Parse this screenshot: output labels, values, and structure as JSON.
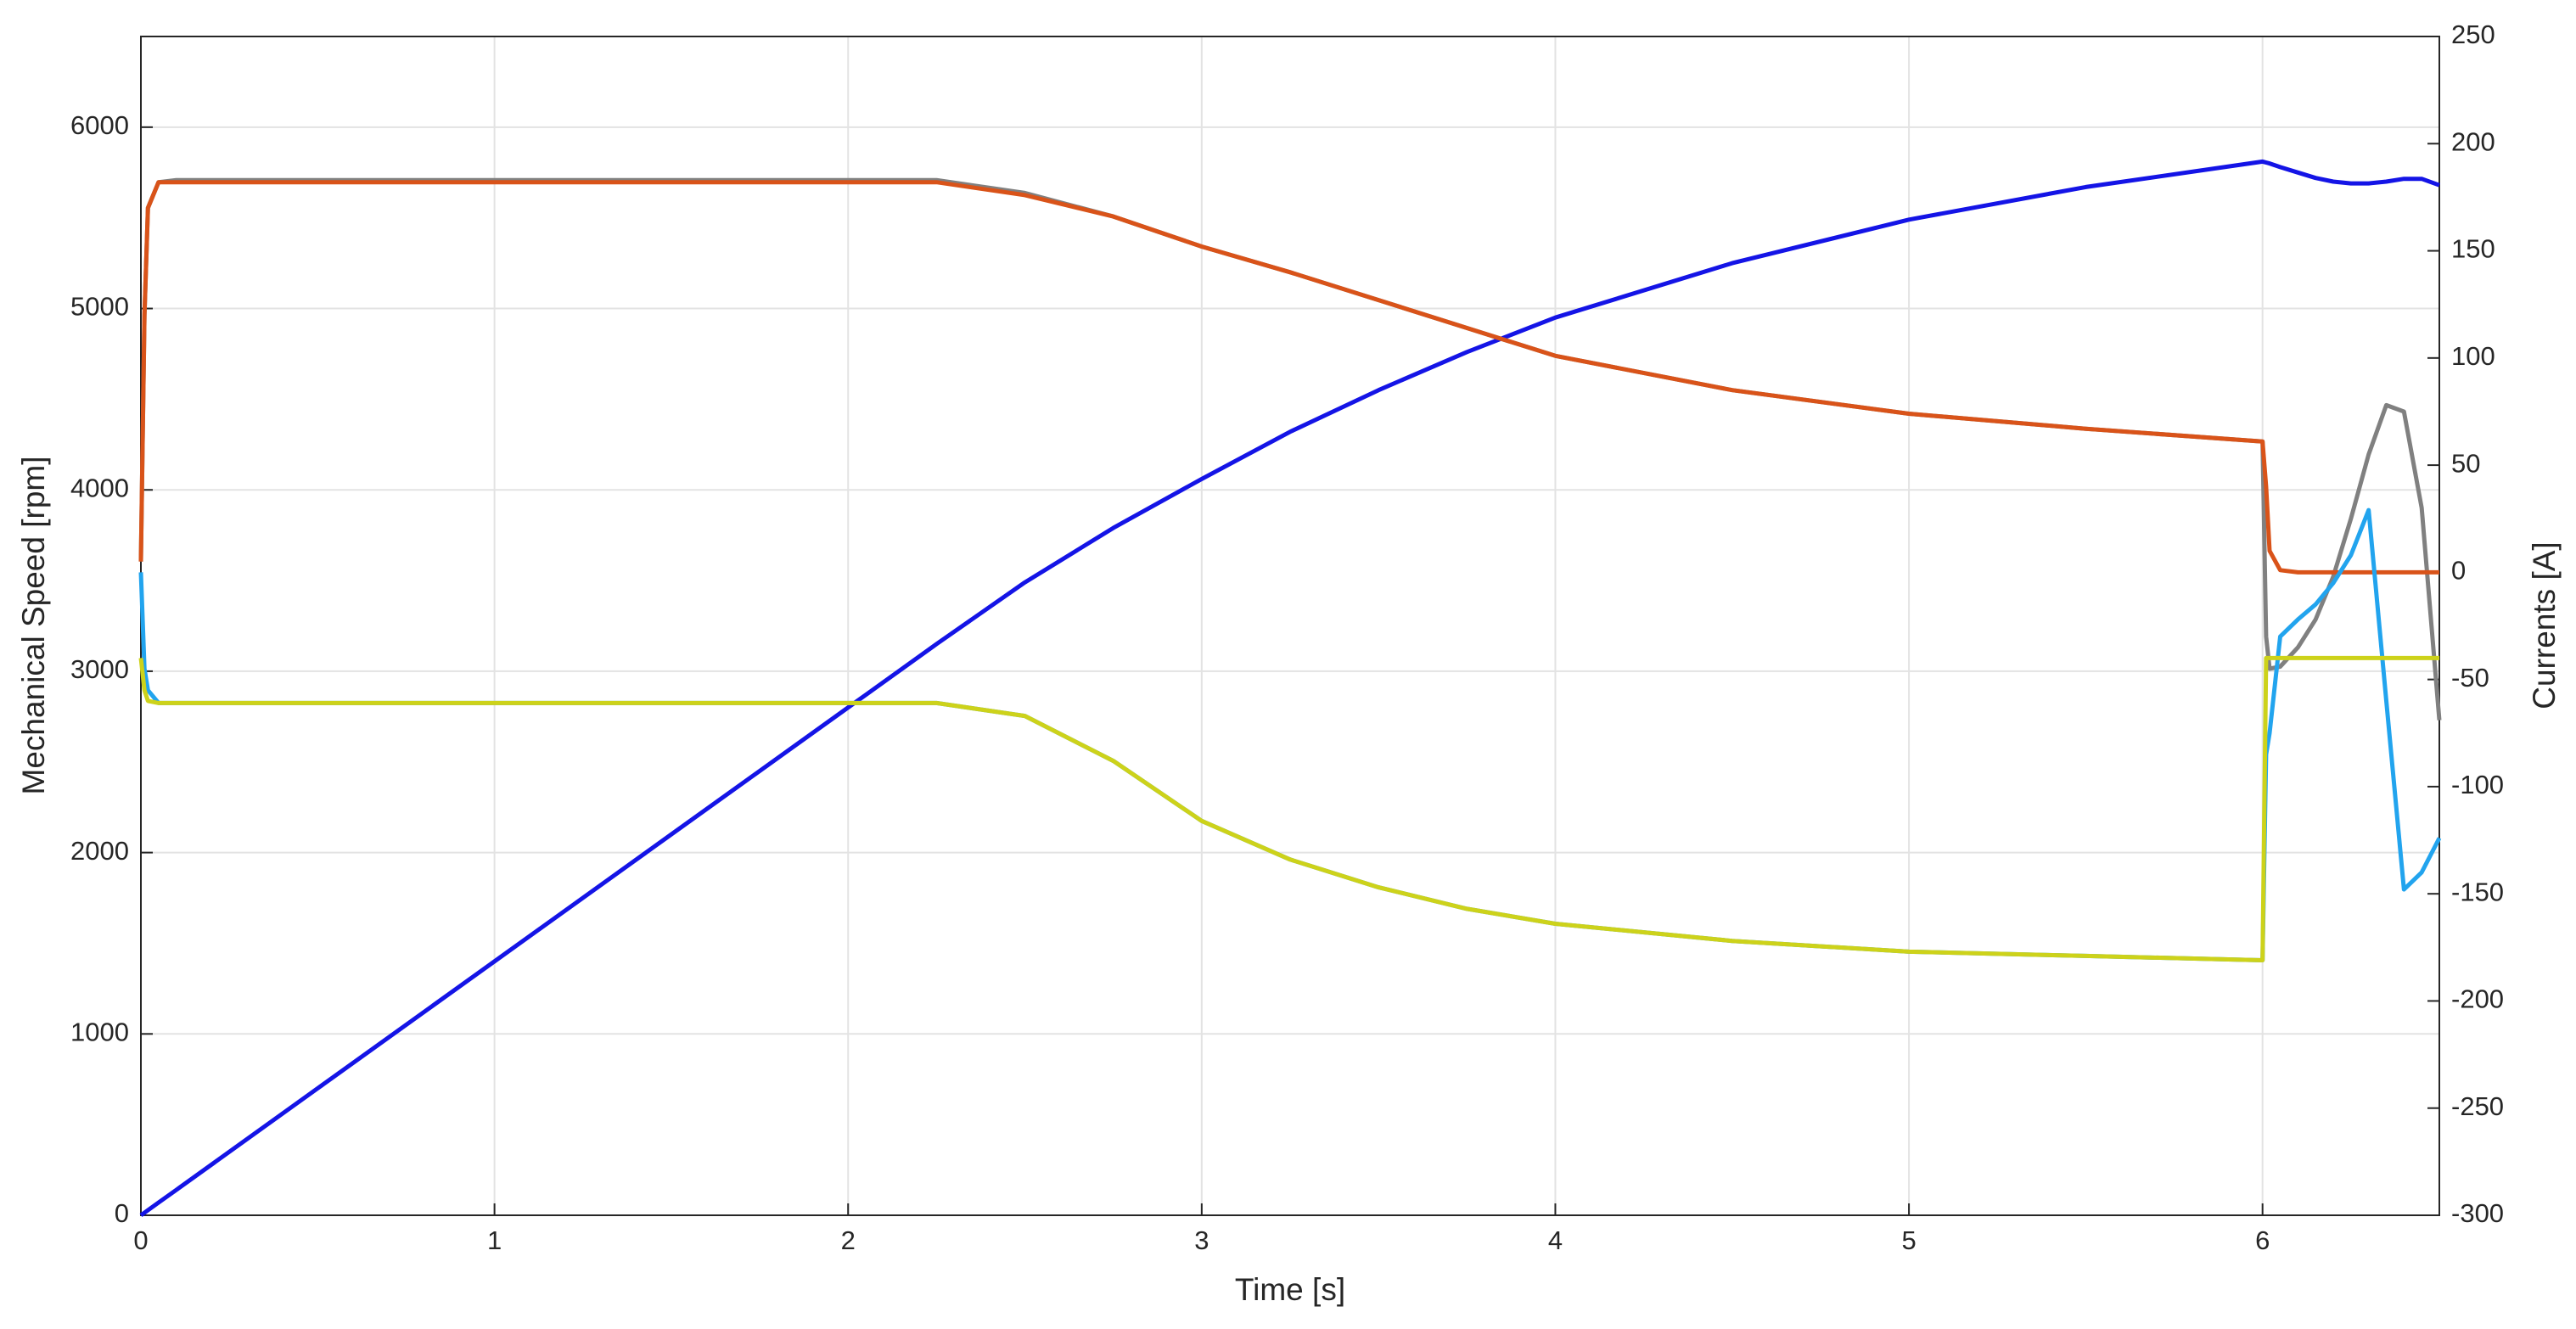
{
  "chart_data": {
    "type": "line",
    "xlabel": "Time [s]",
    "ylabel": "Mechanical Speed [rpm]",
    "y2label": "Currents [A]",
    "xlim": [
      0,
      6.5
    ],
    "xticks": [
      0,
      1,
      2,
      3,
      4,
      5,
      6
    ],
    "ylim": [
      0,
      6500
    ],
    "yticks": [
      0,
      1000,
      2000,
      3000,
      4000,
      5000,
      6000
    ],
    "y2lim": [
      -300,
      250
    ],
    "y2ticks": [
      -300,
      -250,
      -200,
      -150,
      -100,
      -50,
      0,
      50,
      100,
      150,
      200,
      250
    ],
    "grid": true,
    "x": [
      0,
      0.01,
      0.02,
      0.05,
      0.1,
      0.5,
      1,
      1.5,
      2,
      2.25,
      2.5,
      2.75,
      3,
      3.25,
      3.5,
      3.75,
      4,
      4.5,
      5,
      5.5,
      6,
      6.01,
      6.02,
      6.05,
      6.1,
      6.15,
      6.2,
      6.25,
      6.3,
      6.35,
      6.4,
      6.45,
      6.5
    ],
    "series": [
      {
        "color": "#1414e6",
        "values": [
          0,
          14,
          28,
          70,
          140,
          700,
          1400,
          2100,
          2800,
          3150,
          3490,
          3790,
          4060,
          4320,
          4550,
          4760,
          4950,
          5250,
          5490,
          5670,
          5810,
          5805,
          5800,
          5780,
          5750,
          5720,
          5700,
          5690,
          5690,
          5700,
          5715,
          5715,
          5680
        ]
      },
      {
        "color": "#808080",
        "axis": "y2",
        "values": [
          5,
          120,
          170,
          182,
          183,
          183,
          183,
          183,
          183,
          183,
          177,
          166,
          152,
          140,
          127,
          114,
          101,
          85,
          74,
          67,
          61,
          -30,
          -45,
          -44,
          -35,
          -22,
          -2,
          25,
          55,
          78,
          75,
          30,
          -69
        ]
      },
      {
        "color": "#d95319",
        "axis": "y2",
        "values": [
          5,
          120,
          170,
          182,
          182,
          182,
          182,
          182,
          182,
          182,
          176,
          166,
          152,
          140,
          127,
          114,
          101,
          85,
          74,
          67,
          61,
          40,
          10,
          1,
          0,
          0,
          0,
          0,
          0,
          0,
          0,
          0,
          0
        ]
      },
      {
        "color": "#22a4ee",
        "axis": "y2",
        "values": [
          0,
          -45,
          -55,
          -61,
          -61,
          -61,
          -61,
          -61,
          -61,
          -61,
          -67,
          -88,
          -116,
          -134,
          -147,
          -157,
          -164,
          -172,
          -177,
          -179,
          -181,
          -85,
          -75,
          -30,
          -22,
          -15,
          -5,
          8,
          29,
          -60,
          -148,
          -140,
          -124
        ]
      },
      {
        "color": "#cdd21a",
        "axis": "y2",
        "values": [
          -40,
          -55,
          -60,
          -61,
          -61,
          -61,
          -61,
          -61,
          -61,
          -61,
          -67,
          -88,
          -116,
          -134,
          -147,
          -157,
          -164,
          -172,
          -177,
          -179,
          -181,
          -40,
          -40,
          -40,
          -40,
          -40,
          -40,
          -40,
          -40,
          -40,
          -40,
          -40,
          -40
        ]
      }
    ]
  }
}
